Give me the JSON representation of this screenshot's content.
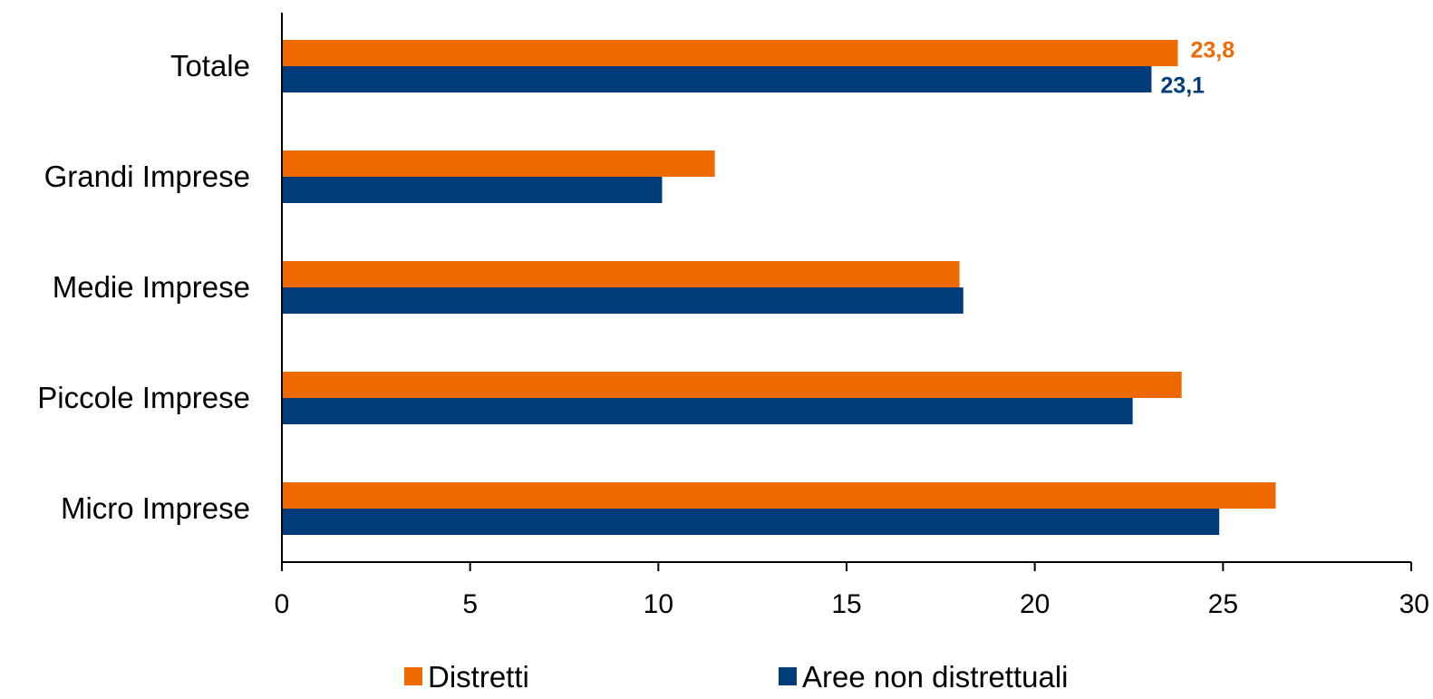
{
  "chart_data": {
    "type": "bar",
    "orientation": "horizontal",
    "categories": [
      "Totale",
      "Grandi Imprese",
      "Medie Imprese",
      "Piccole Imprese",
      "Micro Imprese"
    ],
    "series": [
      {
        "name": "Distretti",
        "color": "#EE6A00",
        "values": [
          23.8,
          11.5,
          18.0,
          23.9,
          26.4
        ]
      },
      {
        "name": "Aree non distrettuali",
        "color": "#003B7A",
        "values": [
          23.1,
          10.1,
          18.1,
          22.6,
          24.9
        ]
      }
    ],
    "data_labels": [
      {
        "series": 0,
        "category": 0,
        "text": "23,8"
      },
      {
        "series": 1,
        "category": 0,
        "text": "23,1"
      }
    ],
    "xlim": [
      0,
      30
    ],
    "xticks": [
      "0",
      "5",
      "10",
      "15",
      "20",
      "25",
      "30"
    ],
    "grid": false,
    "legend_position": "bottom"
  }
}
